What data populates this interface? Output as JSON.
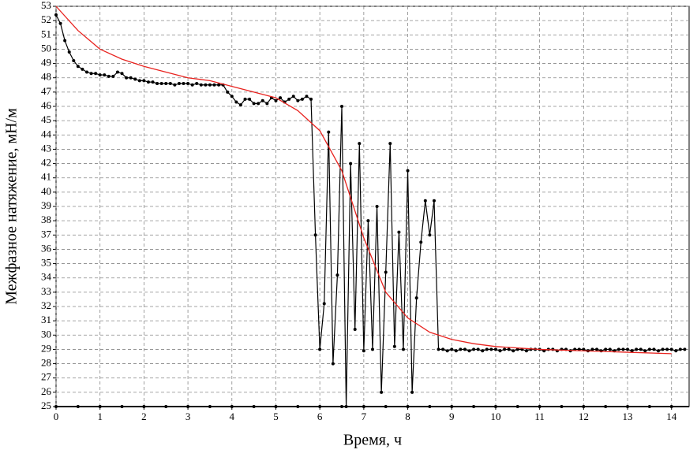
{
  "chart_data": {
    "type": "line",
    "xlabel": "Время, ч",
    "ylabel": "Межфазное натяжение, мН/м",
    "xlim": [
      0,
      14.4
    ],
    "ylim": [
      25,
      53
    ],
    "xticks": [
      0,
      1,
      2,
      3,
      4,
      5,
      6,
      7,
      8,
      9,
      10,
      11,
      12,
      13,
      14
    ],
    "yticks": [
      25,
      26,
      27,
      28,
      29,
      30,
      31,
      32,
      33,
      34,
      35,
      36,
      37,
      38,
      39,
      40,
      41,
      42,
      43,
      44,
      45,
      46,
      47,
      48,
      49,
      50,
      51,
      52,
      53
    ],
    "grid": true,
    "series": [
      {
        "color": "#000000",
        "marker": true,
        "x": [
          0,
          0.1,
          0.2,
          0.3,
          0.4,
          0.5,
          0.6,
          0.7,
          0.8,
          0.9,
          1,
          1.1,
          1.2,
          1.3,
          1.4,
          1.5,
          1.6,
          1.7,
          1.8,
          1.9,
          2,
          2.1,
          2.2,
          2.3,
          2.4,
          2.5,
          2.6,
          2.7,
          2.8,
          2.9,
          3,
          3.1,
          3.2,
          3.3,
          3.4,
          3.5,
          3.6,
          3.7,
          3.8,
          3.9,
          4,
          4.1,
          4.2,
          4.3,
          4.4,
          4.5,
          4.6,
          4.7,
          4.8,
          4.9,
          5,
          5.1,
          5.2,
          5.3,
          5.4,
          5.5,
          5.6,
          5.7,
          5.8,
          5.9,
          6,
          6.1,
          6.2,
          6.3,
          6.4,
          6.5,
          6.6,
          6.7,
          6.8,
          6.9,
          7,
          7.1,
          7.2,
          7.3,
          7.4,
          7.5,
          7.6,
          7.7,
          7.8,
          7.9,
          8,
          8.1,
          8.2,
          8.3,
          8.4,
          8.5,
          8.6,
          8.7,
          8.8,
          8.9,
          9,
          9.1,
          9.2,
          9.3,
          9.4,
          9.5,
          9.6,
          9.7,
          9.8,
          9.9,
          10,
          10.1,
          10.2,
          10.3,
          10.4,
          10.5,
          10.6,
          10.7,
          10.8,
          10.9,
          11,
          11.1,
          11.2,
          11.3,
          11.4,
          11.5,
          11.6,
          11.7,
          11.8,
          11.9,
          12,
          12.1,
          12.2,
          12.3,
          12.4,
          12.5,
          12.6,
          12.7,
          12.8,
          12.9,
          13,
          13.1,
          13.2,
          13.3,
          13.4,
          13.5,
          13.6,
          13.7,
          13.8,
          13.9,
          14,
          14.1,
          14.2,
          14.3
        ],
        "values": [
          52.4,
          51.8,
          50.6,
          49.8,
          49.2,
          48.8,
          48.6,
          48.4,
          48.3,
          48.3,
          48.2,
          48.2,
          48.1,
          48.1,
          48.4,
          48.3,
          48.0,
          48.0,
          47.9,
          47.8,
          47.8,
          47.7,
          47.7,
          47.6,
          47.6,
          47.6,
          47.6,
          47.5,
          47.6,
          47.6,
          47.6,
          47.5,
          47.6,
          47.5,
          47.5,
          47.5,
          47.5,
          47.5,
          47.5,
          47.0,
          46.7,
          46.3,
          46.1,
          46.5,
          46.5,
          46.2,
          46.2,
          46.4,
          46.2,
          46.6,
          46.4,
          46.6,
          46.3,
          46.5,
          46.7,
          46.4,
          46.5,
          46.7,
          46.5,
          37.0,
          29.0,
          32.2,
          44.2,
          28.0,
          34.2,
          46.0,
          25.0,
          42.0,
          30.4,
          43.4,
          28.9,
          38.0,
          29.0,
          39.0,
          26.0,
          34.4,
          43.4,
          29.2,
          37.2,
          29.0,
          41.5,
          26.0,
          32.6,
          36.5,
          39.4,
          37.0,
          39.4,
          29.0,
          29.0,
          28.9,
          29.0,
          28.9,
          29.0,
          29.0,
          28.9,
          29.0,
          29.0,
          28.9,
          29.0,
          29.0,
          29.0,
          28.9,
          29.0,
          29.0,
          28.9,
          29.0,
          29.0,
          28.9,
          29.0,
          29.0,
          29.0,
          28.9,
          29.0,
          29.0,
          28.9,
          29.0,
          29.0,
          28.9,
          29.0,
          29.0,
          29.0,
          28.9,
          29.0,
          29.0,
          28.9,
          29.0,
          29.0,
          28.9,
          29.0,
          29.0,
          29.0,
          28.9,
          29.0,
          29.0,
          28.9,
          29.0,
          29.0,
          28.9,
          29.0,
          29.0,
          29.0,
          28.9,
          29.0,
          29.0
        ]
      },
      {
        "color": "#e8231f",
        "marker": false,
        "x": [
          0,
          0.5,
          1,
          1.5,
          2,
          2.5,
          3,
          3.5,
          4,
          4.5,
          5,
          5.5,
          6,
          6.5,
          7,
          7.5,
          8,
          8.5,
          9,
          9.5,
          10,
          11,
          12,
          13,
          14
        ],
        "values": [
          53,
          51.3,
          50.0,
          49.3,
          48.8,
          48.4,
          48.0,
          47.8,
          47.4,
          47.0,
          46.6,
          45.7,
          44.3,
          41.5,
          36.8,
          33.0,
          31.2,
          30.2,
          29.7,
          29.4,
          29.2,
          29.0,
          28.9,
          28.8,
          28.7
        ]
      },
      {
        "color": "#000000",
        "marker": true,
        "x": [
          0,
          0.5,
          1,
          1.5,
          2,
          2.5,
          3,
          3.5,
          4,
          4.5,
          5,
          5.5,
          6,
          6.5,
          7,
          7.5,
          8,
          8.5,
          9,
          9.5,
          10,
          10.5,
          11,
          11.5,
          12,
          12.5,
          13,
          13.5,
          14
        ],
        "values": [
          25,
          25,
          25,
          25,
          25,
          25,
          25,
          25,
          25,
          25,
          25,
          25,
          25,
          25,
          25,
          25,
          25,
          25,
          25,
          25,
          25,
          25,
          25,
          25,
          25,
          25,
          25,
          25,
          25
        ]
      }
    ]
  }
}
